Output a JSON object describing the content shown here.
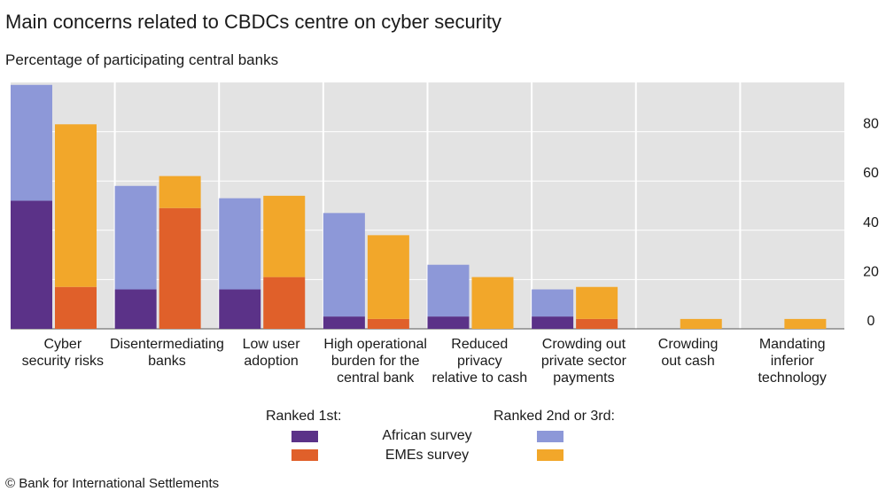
{
  "title": "Main concerns related to CBDCs centre on cyber security",
  "subtitle": "Percentage of participating central banks",
  "source": "© Bank for International Settlements",
  "legend": {
    "ranked_first": "Ranked 1st:",
    "ranked_other": "Ranked 2nd or 3rd:",
    "african": "African survey",
    "emes": "EMEs survey"
  },
  "colors": {
    "african_first": "#5b3288",
    "african_other": "#8d98d8",
    "emes_first": "#e0602a",
    "emes_other": "#f2a72a",
    "plot_bg": "#e3e3e3",
    "grid": "#ffffff"
  },
  "chart_data": {
    "type": "bar",
    "stacked": true,
    "categories": [
      [
        "Cyber",
        "security risks"
      ],
      [
        "Disentermediating",
        "banks"
      ],
      [
        "Low user",
        "adoption"
      ],
      [
        "High operational",
        "burden for the",
        "central bank"
      ],
      [
        "Reduced",
        "privacy",
        "relative to cash"
      ],
      [
        "Crowding out",
        "private sector",
        "payments"
      ],
      [
        "Crowding",
        "out cash"
      ],
      [
        "Mandating",
        "inferior",
        "technology"
      ]
    ],
    "series": [
      {
        "name": "African survey",
        "ranked_1st": [
          52,
          16,
          16,
          5,
          5,
          5,
          0,
          0
        ],
        "ranked_2nd_or_3rd": [
          47,
          42,
          37,
          42,
          21,
          11,
          0,
          0
        ]
      },
      {
        "name": "EMEs survey",
        "ranked_1st": [
          17,
          49,
          21,
          4,
          0,
          4,
          0,
          0
        ],
        "ranked_2nd_or_3rd": [
          66,
          13,
          33,
          34,
          21,
          13,
          4,
          4
        ]
      }
    ],
    "y_ticks": [
      0,
      20,
      40,
      60,
      80
    ],
    "ylim": [
      0,
      100
    ],
    "y_axis_side": "right",
    "grid": true
  }
}
